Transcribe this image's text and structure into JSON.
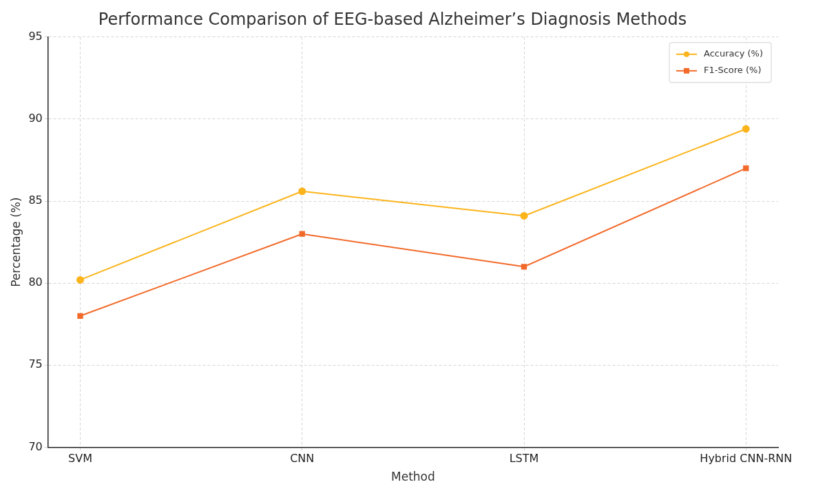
{
  "chart_data": {
    "type": "line",
    "title": "Performance Comparison of EEG-based Alzheimer’s Diagnosis Methods",
    "xlabel": "Method",
    "ylabel": "Percentage (%)",
    "categories": [
      "SVM",
      "CNN",
      "LSTM",
      "Hybrid CNN-RNN"
    ],
    "series": [
      {
        "name": "Accuracy (%)",
        "color": "#fbb41b",
        "marker": "circle",
        "values": [
          80.2,
          85.6,
          84.1,
          89.4
        ]
      },
      {
        "name": "F1-Score (%)",
        "color": "#f26a2a",
        "marker": "square",
        "values": [
          78.0,
          83.0,
          81.0,
          87.0
        ]
      }
    ],
    "ylim": [
      70,
      95
    ],
    "yticks": [
      70,
      75,
      80,
      85,
      90,
      95
    ],
    "grid": true,
    "legend": "top right",
    "line_style": "solid"
  }
}
